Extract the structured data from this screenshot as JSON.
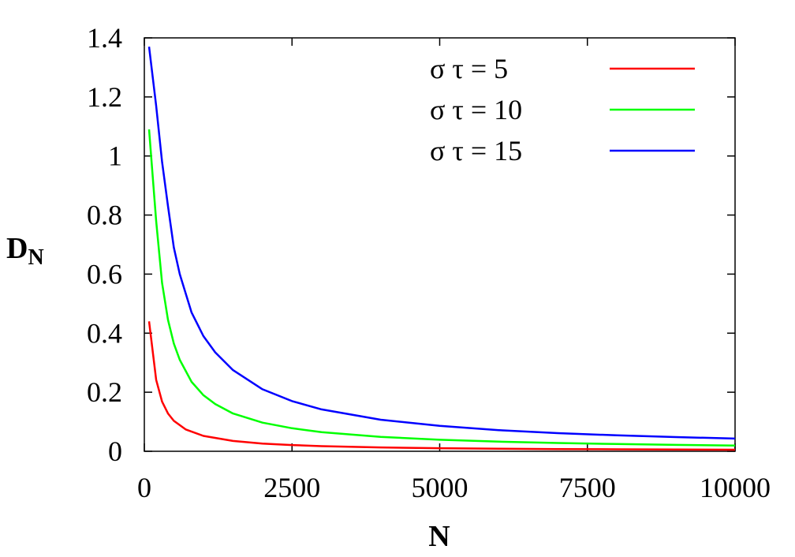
{
  "chart_data": {
    "type": "line",
    "xlabel": "N",
    "ylabel_main": "D",
    "ylabel_sub": "N",
    "xlim": [
      0,
      10000
    ],
    "ylim": [
      0,
      1.4
    ],
    "xticks": [
      0,
      2500,
      5000,
      7500,
      10000
    ],
    "xtick_labels": [
      "0",
      "2500",
      "5000",
      "7500",
      "10000"
    ],
    "yticks": [
      0,
      0.2,
      0.4,
      0.6,
      0.8,
      1,
      1.2,
      1.4
    ],
    "ytick_labels": [
      "0",
      "0.2",
      "0.4",
      "0.6",
      "0.8",
      "1",
      "1.2",
      "1.4"
    ],
    "grid": false,
    "legend_position": "top-right",
    "series": [
      {
        "name": "σ τ = 5",
        "color": "#ff0000",
        "x": [
          80,
          200,
          300,
          400,
          500,
          700,
          1000,
          1500,
          2000,
          2500,
          3000,
          4000,
          5000,
          6000,
          7000,
          8000,
          9000,
          10000
        ],
        "y": [
          0.44,
          0.242,
          0.168,
          0.128,
          0.103,
          0.074,
          0.052,
          0.035,
          0.026,
          0.021,
          0.0175,
          0.0131,
          0.0105,
          0.0087,
          0.0075,
          0.0066,
          0.0058,
          0.0053
        ]
      },
      {
        "name": "σ τ = 10",
        "color": "#00ff00",
        "x": [
          80,
          200,
          300,
          400,
          500,
          600,
          800,
          1000,
          1200,
          1500,
          2000,
          2500,
          3000,
          4000,
          5000,
          6000,
          7000,
          8000,
          9000,
          10000
        ],
        "y": [
          1.09,
          0.78,
          0.57,
          0.445,
          0.365,
          0.31,
          0.235,
          0.19,
          0.16,
          0.128,
          0.097,
          0.078,
          0.065,
          0.049,
          0.039,
          0.0325,
          0.028,
          0.0245,
          0.0217,
          0.0196
        ]
      },
      {
        "name": "σ τ = 15",
        "color": "#0000ff",
        "x": [
          80,
          200,
          300,
          400,
          500,
          600,
          800,
          1000,
          1200,
          1500,
          2000,
          2500,
          3000,
          4000,
          5000,
          6000,
          7000,
          8000,
          9000,
          10000
        ],
        "y": [
          1.37,
          1.17,
          0.98,
          0.83,
          0.69,
          0.6,
          0.47,
          0.39,
          0.335,
          0.275,
          0.21,
          0.17,
          0.142,
          0.107,
          0.086,
          0.0715,
          0.0615,
          0.054,
          0.048,
          0.043
        ]
      }
    ]
  }
}
